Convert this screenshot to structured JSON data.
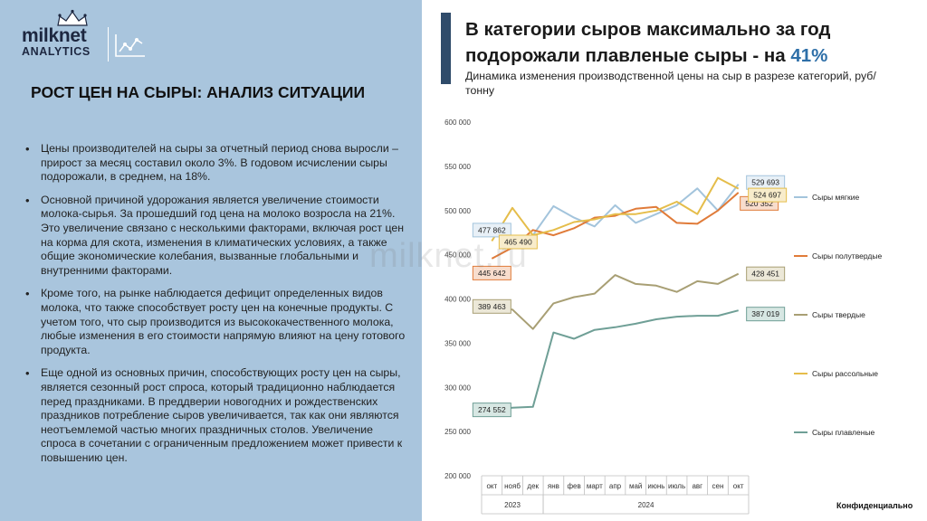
{
  "logo": {
    "line1": "milknet",
    "line2": "ANALYTICS"
  },
  "left": {
    "title": "РОСТ ЦЕН НА СЫРЫ: АНАЛИЗ СИТУАЦИИ",
    "bullets": [
      "Цены производителей на сыры за отчетный период снова выросли – прирост за месяц  составил около 3%. В годовом исчислении сыры подорожали, в среднем, на 18%.",
      "Основной причиной удорожания является увеличение стоимости молока-сырья. За прошедший год цена на молоко возросла на 21%. Это увеличение связано с несколькими факторами, включая рост цен  на корма для скота, изменения в климатических условиях, а также общие экономические колебания, вызванные глобальными и внутренними факторами.",
      "Кроме того, на рынке наблюдается дефицит определенных видов молока, что также способствует росту цен на конечные продукты. С учетом того, что сыр производится из высококачественного молока, любые изменения в его стоимости напрямую влияют на цену  готового продукта.",
      "Еще одной из основных причин, способствующих росту цен на сыры, является сезонный рост спроса, который традиционно наблюдается перед праздниками. В преддверии новогодних и рождественских праздников потребление сыров увеличивается, так как они являются неотъемлемой частью многих праздничных столов. Увеличение спроса в сочетании с ограниченным предложением может привести к повышению цен."
    ]
  },
  "header": {
    "title_main": "В категории сыров максимально за год подорожали плавленые сыры - на ",
    "title_highlight": "41%",
    "subtitle": "Динамика изменения производственной цены на сыр в разрезе категорий, руб/тонну"
  },
  "watermark": "milknet.ru",
  "footer": {
    "confidential": "Конфиденциально"
  },
  "chart_data": {
    "type": "line",
    "title": "",
    "xlabel": "",
    "ylabel": "",
    "ylim": [
      200000,
      600000
    ],
    "yticks": [
      200000,
      250000,
      300000,
      350000,
      400000,
      450000,
      500000,
      550000,
      600000
    ],
    "ytick_labels": [
      "200 000",
      "250 000",
      "300 000",
      "350 000",
      "400 000",
      "450 000",
      "500 000",
      "550 000",
      "600 000"
    ],
    "categories": [
      "окт",
      "нояб",
      "дек",
      "янв",
      "фев",
      "март",
      "апр",
      "май",
      "июнь",
      "июль",
      "авг",
      "сен",
      "окт"
    ],
    "year_groups": [
      {
        "label": "2023",
        "count": 3
      },
      {
        "label": "2024",
        "count": 10
      }
    ],
    "legend_position": "right",
    "grid": false,
    "series": [
      {
        "name": "Сыры мягкие",
        "color": "#a3c4dc",
        "label_fill": "#e8f0f7",
        "values": [
          477862,
          458000,
          472000,
          505000,
          492000,
          482000,
          506000,
          486000,
          496000,
          506000,
          525000,
          500000,
          529693
        ],
        "start_label": "477 862",
        "end_label": "529 693"
      },
      {
        "name": "Сыры полутвердые",
        "color": "#e07b39",
        "label_fill": "#f8ddcd",
        "values": [
          445642,
          458000,
          478000,
          472000,
          480000,
          492000,
          494000,
          502000,
          504000,
          486000,
          485000,
          500000,
          520352
        ],
        "start_label": "445 642",
        "end_label": "520 352"
      },
      {
        "name": "Сыры твердые",
        "color": "#a89f74",
        "label_fill": "#ece8d8",
        "values": [
          389463,
          388000,
          366000,
          395000,
          402000,
          406000,
          427000,
          417000,
          415000,
          408000,
          420000,
          417000,
          428451
        ],
        "start_label": "389 463",
        "end_label": "428 451"
      },
      {
        "name": "Сыры рассольные",
        "color": "#e5bd4a",
        "label_fill": "#f8eccb",
        "values": [
          465490,
          503000,
          472000,
          478000,
          487000,
          490000,
          496000,
          496000,
          500000,
          510000,
          496000,
          537000,
          524697
        ],
        "start_label": "465 490",
        "end_label": "524 697"
      },
      {
        "name": "Сыры плавленые",
        "color": "#6f9f96",
        "label_fill": "#d7e7e3",
        "values": [
          274552,
          277000,
          278000,
          362000,
          355000,
          365000,
          368000,
          372000,
          377000,
          380000,
          381000,
          381000,
          387019
        ],
        "start_label": "274 552",
        "end_label": "387 019"
      }
    ]
  }
}
